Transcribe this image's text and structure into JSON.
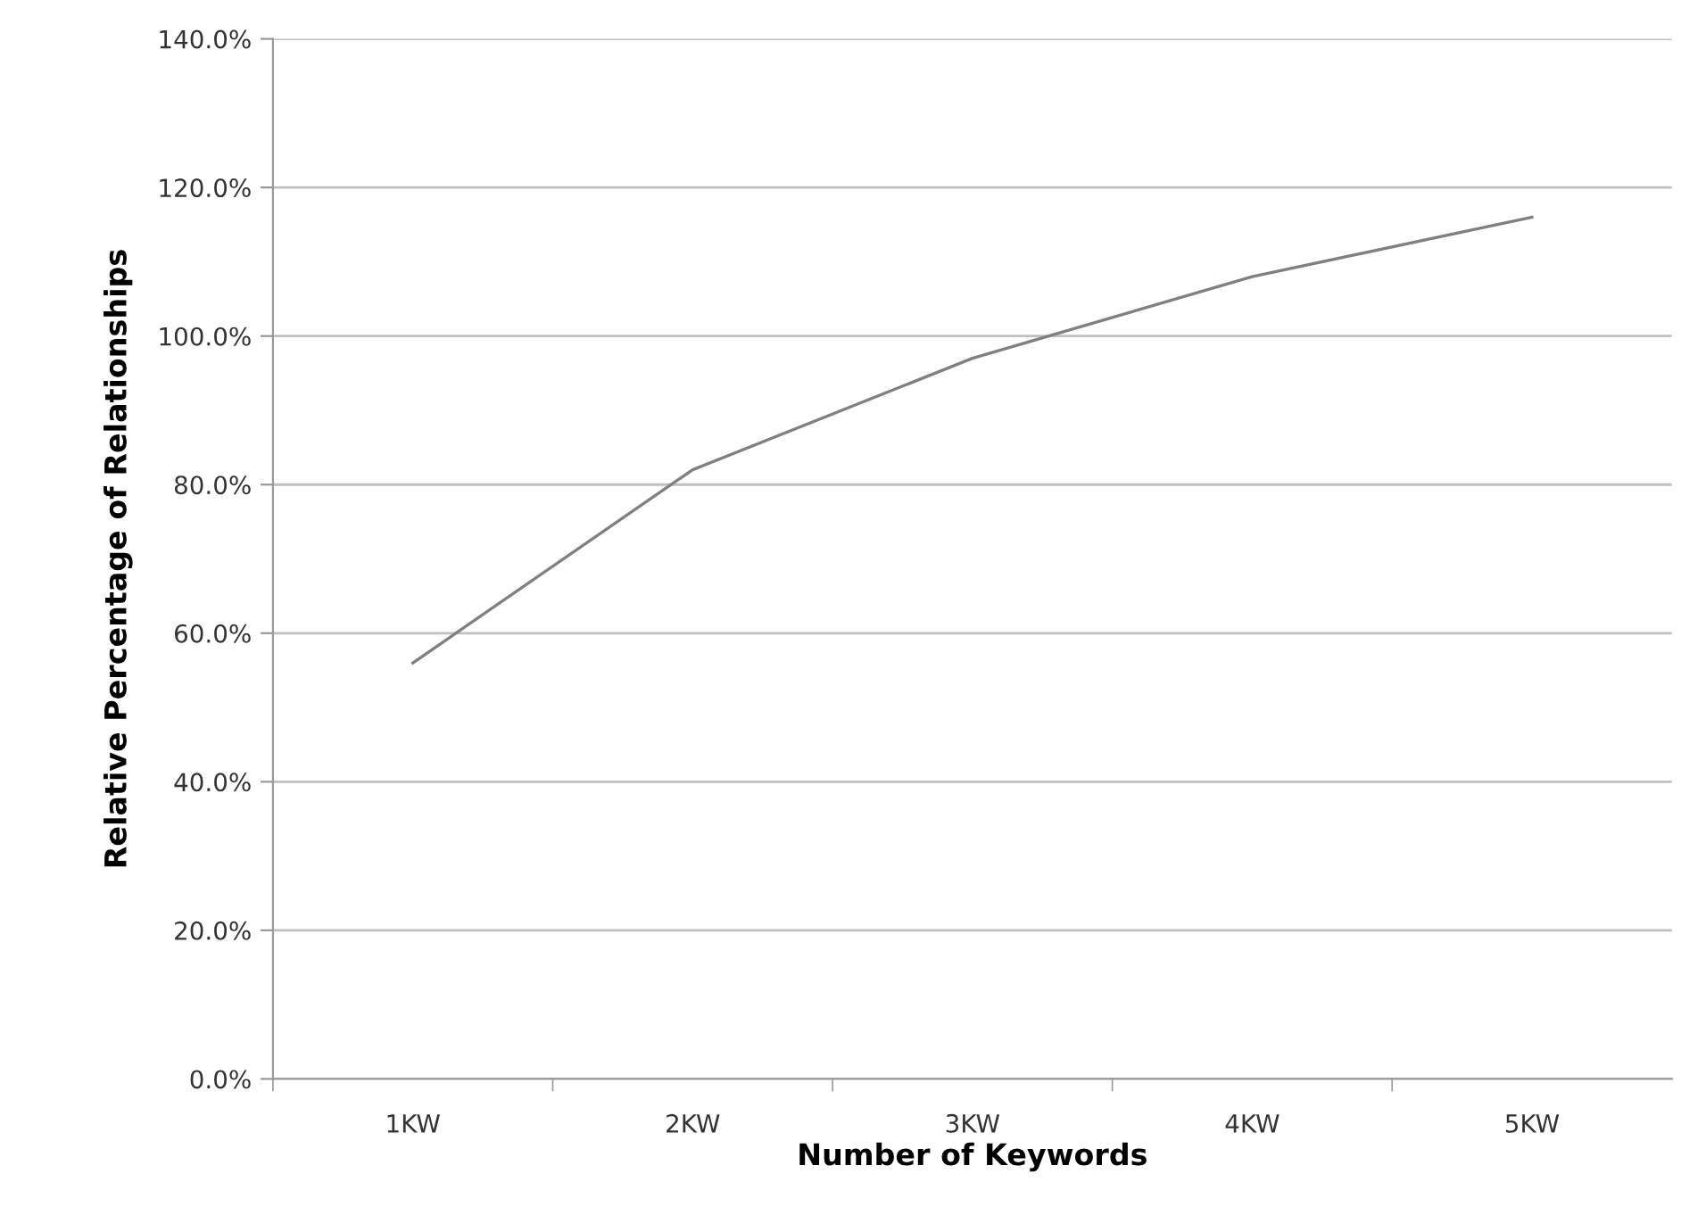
{
  "chart_data": {
    "type": "line",
    "xlabel": "Number of Keywords",
    "ylabel": "Relative Percentage of Relationships",
    "categories": [
      "1KW",
      "2KW",
      "3KW",
      "4KW",
      "5KW"
    ],
    "series": [
      {
        "color": "#808080",
        "values": [
          56,
          82,
          97,
          108,
          116
        ]
      }
    ],
    "ylim": [
      0,
      140
    ],
    "yticks": [
      {
        "value": 0,
        "label": "0.0%"
      },
      {
        "value": 20,
        "label": "20.0%"
      },
      {
        "value": 40,
        "label": "40.0%"
      },
      {
        "value": 60,
        "label": "60.0%"
      },
      {
        "value": 80,
        "label": "80.0%"
      },
      {
        "value": 100,
        "label": "100.0%"
      },
      {
        "value": 120,
        "label": "120.0%"
      },
      {
        "value": 140,
        "label": "140.0%"
      }
    ],
    "grid": "y",
    "legend": false,
    "marker": "none",
    "line_style": "solid"
  }
}
